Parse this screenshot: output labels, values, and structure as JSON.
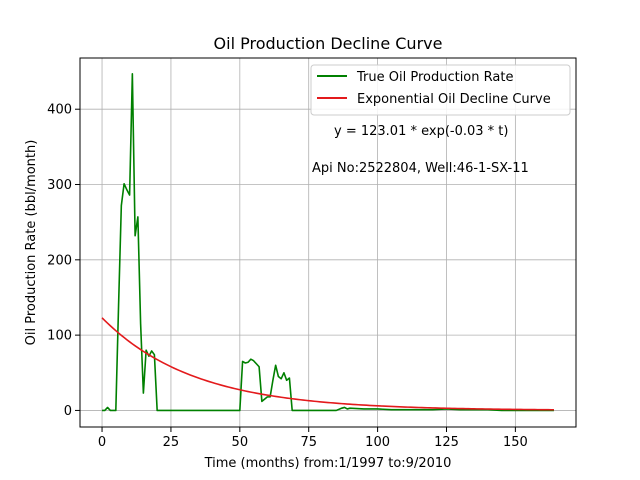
{
  "chart_data": {
    "type": "line",
    "title": "Oil Production Decline Curve",
    "xlabel": "Time (months) from:1/1997 to:9/2010",
    "ylabel": "Oil Production Rate (bbl/month)",
    "xlim": [
      -8,
      172
    ],
    "ylim": [
      -22,
      468
    ],
    "xticks": [
      0,
      25,
      50,
      75,
      100,
      125,
      150
    ],
    "yticks": [
      0,
      100,
      200,
      300,
      400
    ],
    "grid": true,
    "legend_position": "top-right",
    "annotations": [
      "y = 123.01 * exp(-0.03 * t)",
      "Api No:2522804, Well:46-1-SX-11"
    ],
    "series": [
      {
        "name": "True Oil Production Rate",
        "color": "#008000",
        "kind": "observed",
        "x": [
          0,
          1,
          2,
          3,
          4,
          5,
          6,
          7,
          8,
          9,
          10,
          11,
          12,
          13,
          14,
          15,
          16,
          17,
          18,
          19,
          20,
          25,
          30,
          35,
          40,
          45,
          50,
          51,
          52,
          53,
          54,
          55,
          56,
          57,
          58,
          59,
          60,
          61,
          62,
          63,
          64,
          65,
          66,
          67,
          68,
          69,
          70,
          71,
          72,
          75,
          80,
          85,
          87,
          88,
          89,
          90,
          95,
          100,
          105,
          110,
          115,
          120,
          125,
          130,
          135,
          140,
          145,
          150,
          155,
          160,
          164
        ],
        "y": [
          0,
          0,
          4,
          0,
          0,
          0,
          140,
          272,
          301,
          293,
          286,
          447,
          232,
          257,
          115,
          23,
          80,
          72,
          79,
          74,
          0,
          0,
          0,
          0,
          0,
          0,
          0,
          65,
          63,
          64,
          68,
          66,
          62,
          58,
          12,
          15,
          18,
          18,
          40,
          60,
          45,
          42,
          50,
          40,
          43,
          0,
          0,
          0,
          0,
          0,
          0,
          0,
          3,
          4,
          2,
          3,
          2,
          2,
          1,
          1,
          1,
          1,
          2,
          1,
          1,
          1,
          0,
          0,
          0,
          0,
          0
        ]
      },
      {
        "name": "Exponential Oil Decline Curve",
        "color": "#e31a1c",
        "kind": "model",
        "a": 123.01,
        "b": 0.03,
        "x_start": 0,
        "x_end": 164
      }
    ]
  }
}
